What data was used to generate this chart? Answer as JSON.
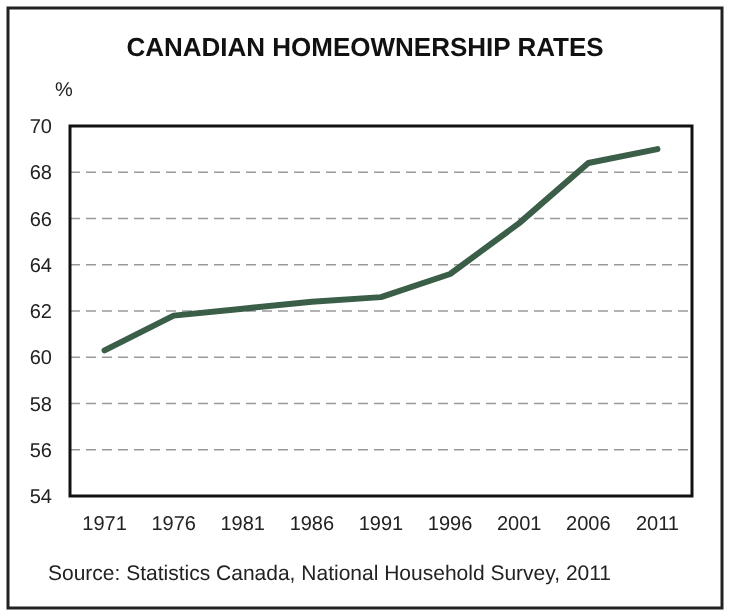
{
  "chart_data": {
    "type": "line",
    "title": "CANADIAN HOMEOWNERSHIP RATES",
    "ylabel": "%",
    "categories": [
      "1971",
      "1976",
      "1981",
      "1986",
      "1991",
      "1996",
      "2001",
      "2006",
      "2011"
    ],
    "series": [
      {
        "color": "#3b5e48",
        "values": [
          60.3,
          61.8,
          62.1,
          62.4,
          62.6,
          63.6,
          65.8,
          68.4,
          69.0
        ]
      }
    ],
    "ylim": [
      54,
      70
    ],
    "yticks": [
      54,
      56,
      58,
      60,
      62,
      64,
      66,
      68,
      70
    ],
    "grid": "y",
    "line_style": "solid",
    "marker": "none",
    "annotations": [
      "Source: Statistics Canada, National Household Survey, 2011"
    ]
  }
}
